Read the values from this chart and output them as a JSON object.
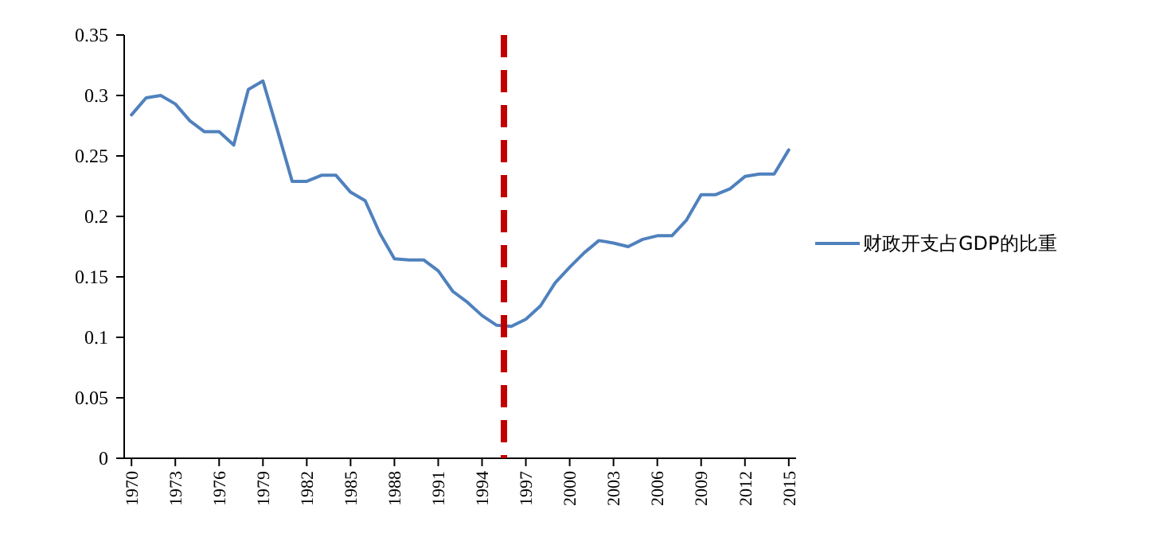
{
  "chart_data": {
    "type": "line",
    "x": [
      1970,
      1971,
      1972,
      1973,
      1974,
      1975,
      1976,
      1977,
      1978,
      1979,
      1980,
      1981,
      1982,
      1983,
      1984,
      1985,
      1986,
      1987,
      1988,
      1989,
      1990,
      1991,
      1992,
      1993,
      1994,
      1995,
      1996,
      1997,
      1998,
      1999,
      2000,
      2001,
      2002,
      2003,
      2004,
      2005,
      2006,
      2007,
      2008,
      2009,
      2010,
      2011,
      2012,
      2013,
      2014,
      2015
    ],
    "series": [
      {
        "name": "财政开支占GDP的比重",
        "color": "#4f81bd",
        "values": [
          0.284,
          0.298,
          0.3,
          0.293,
          0.279,
          0.27,
          0.27,
          0.259,
          0.305,
          0.312,
          0.271,
          0.229,
          0.229,
          0.234,
          0.234,
          0.22,
          0.213,
          0.186,
          0.165,
          0.164,
          0.164,
          0.155,
          0.138,
          0.129,
          0.118,
          0.11,
          0.109,
          0.115,
          0.126,
          0.145,
          0.158,
          0.17,
          0.18,
          0.178,
          0.175,
          0.181,
          0.184,
          0.184,
          0.197,
          0.218,
          0.218,
          0.223,
          0.233,
          0.235,
          0.235,
          0.255
        ]
      }
    ],
    "xlim": [
      1969.5,
      2015.5
    ],
    "xticks": [
      1970,
      1973,
      1976,
      1979,
      1982,
      1985,
      1988,
      1991,
      1994,
      1997,
      2000,
      2003,
      2006,
      2009,
      2012,
      2015
    ],
    "ylim": [
      0,
      0.35
    ],
    "yticks": [
      0,
      0.05,
      0.1,
      0.15,
      0.2,
      0.25,
      0.3,
      0.35
    ],
    "ref_lines": [
      {
        "axis": "x",
        "value": 1995.5,
        "color": "#c00000",
        "line_style": "dashed"
      }
    ],
    "grid": false,
    "legend": "right",
    "marker": "none",
    "line_style": "solid"
  }
}
